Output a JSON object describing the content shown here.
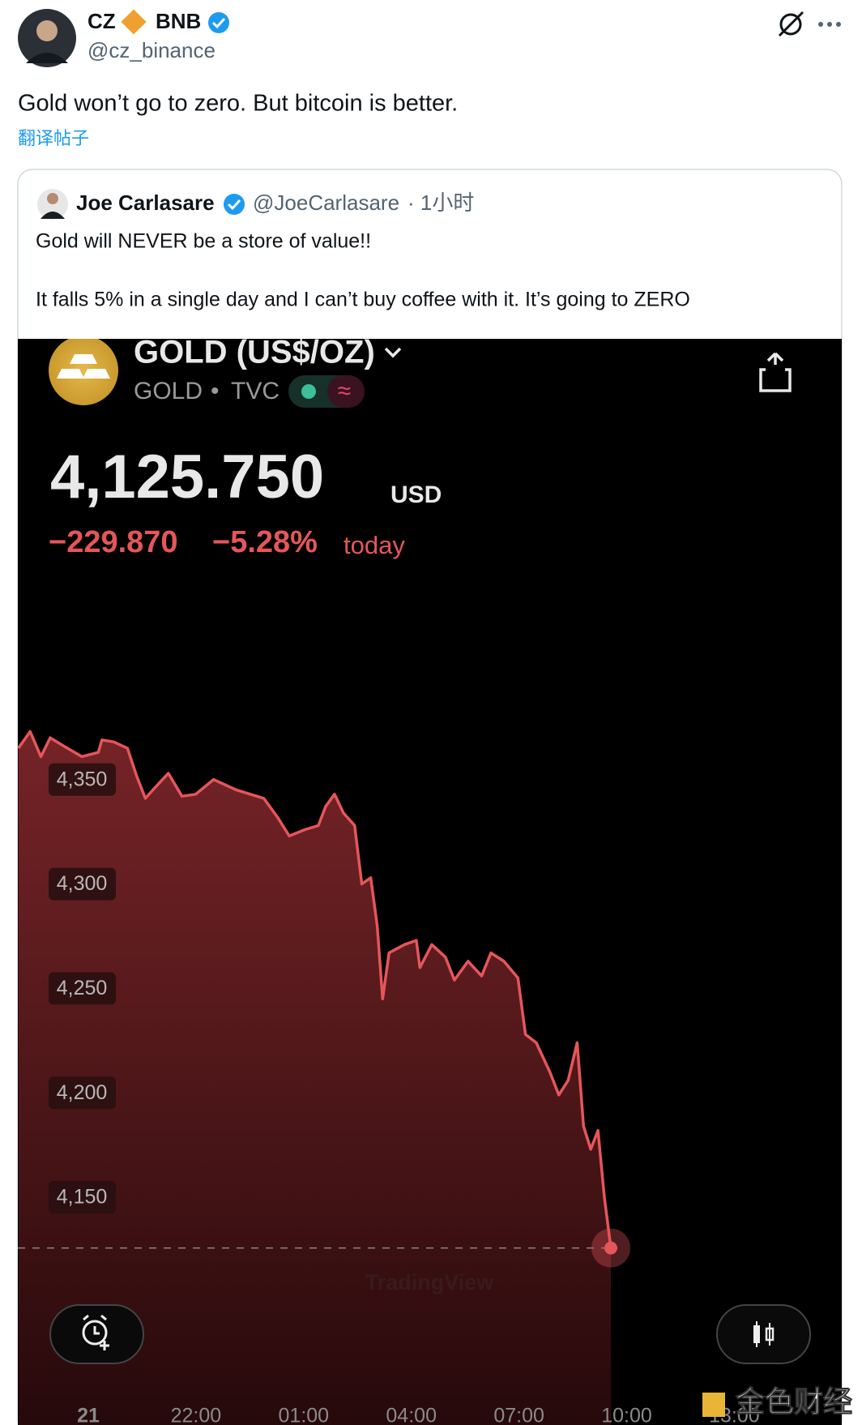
{
  "tweet": {
    "name": "CZ",
    "badge": "BNB",
    "handle": "@cz_binance",
    "text": "Gold won’t go to zero. But bitcoin is better.",
    "translate": "翻译帖子"
  },
  "quote": {
    "name": "Joe Carlasare",
    "handle": "@JoeCarlasare",
    "time": "· 1小时",
    "lines": [
      "Gold will NEVER be a store of value!!",
      "It falls 5% in a single day and I can’t buy coffee with it. It’s going to ZERO"
    ]
  },
  "chart_data": {
    "type": "line",
    "title": "GOLD (US$/OZ)",
    "symbol": "GOLD",
    "exchange": "TVC",
    "price": "4,125.750",
    "currency": "USD",
    "change": "−229.870",
    "change_percent": "−5.28%",
    "period": "today",
    "watermark": "TradingView",
    "source": "金色财经",
    "color": "#e5565b",
    "x": [
      -1.95,
      -1.62,
      -1.32,
      -1.06,
      -0.68,
      -0.18,
      0.28,
      0.38,
      0.71,
      1.09,
      1.34,
      1.59,
      1.85,
      2.23,
      2.61,
      2.99,
      3.49,
      4.13,
      4.89,
      5.27,
      5.6,
      6.03,
      6.41,
      6.61,
      6.86,
      7.11,
      7.42,
      7.62,
      7.87,
      8.05,
      8.2,
      8.38,
      8.81,
      9.14,
      9.24,
      9.57,
      9.95,
      10.2,
      10.58,
      10.96,
      11.22,
      11.58,
      11.97,
      12.18,
      12.48,
      12.86,
      13.11,
      13.37,
      13.62,
      13.8,
      14.0,
      14.2,
      14.38,
      14.56
    ],
    "values": [
      4365,
      4373,
      4361,
      4370,
      4366,
      4361,
      4363,
      4369,
      4368,
      4365,
      4352,
      4341,
      4346,
      4353,
      4342,
      4343,
      4350,
      4345,
      4341,
      4332,
      4323,
      4326,
      4328,
      4337,
      4343,
      4334,
      4328,
      4300,
      4303,
      4280,
      4245,
      4267,
      4271,
      4273,
      4260,
      4271,
      4265,
      4254,
      4263,
      4256,
      4267,
      4263,
      4255,
      4228,
      4224,
      4210,
      4199,
      4206,
      4224,
      4184,
      4173,
      4182,
      4150,
      4125.75
    ],
    "xlim": [
      -2,
      21
    ],
    "ylim": [
      4041,
      4561
    ],
    "yticks": [
      {
        "value": 4350,
        "label": "4,350"
      },
      {
        "value": 4300,
        "label": "4,300"
      },
      {
        "value": 4250,
        "label": "4,250"
      },
      {
        "value": 4200,
        "label": "4,200"
      },
      {
        "value": 4150,
        "label": "4,150"
      }
    ],
    "xticks": [
      {
        "value": 0,
        "label": "21"
      },
      {
        "value": 3,
        "label": "22:00"
      },
      {
        "value": 6,
        "label": "01:00"
      },
      {
        "value": 9,
        "label": "04:00"
      },
      {
        "value": 12,
        "label": "07:00"
      },
      {
        "value": 15,
        "label": "10:00"
      },
      {
        "value": 18,
        "label": "13:00"
      }
    ]
  }
}
